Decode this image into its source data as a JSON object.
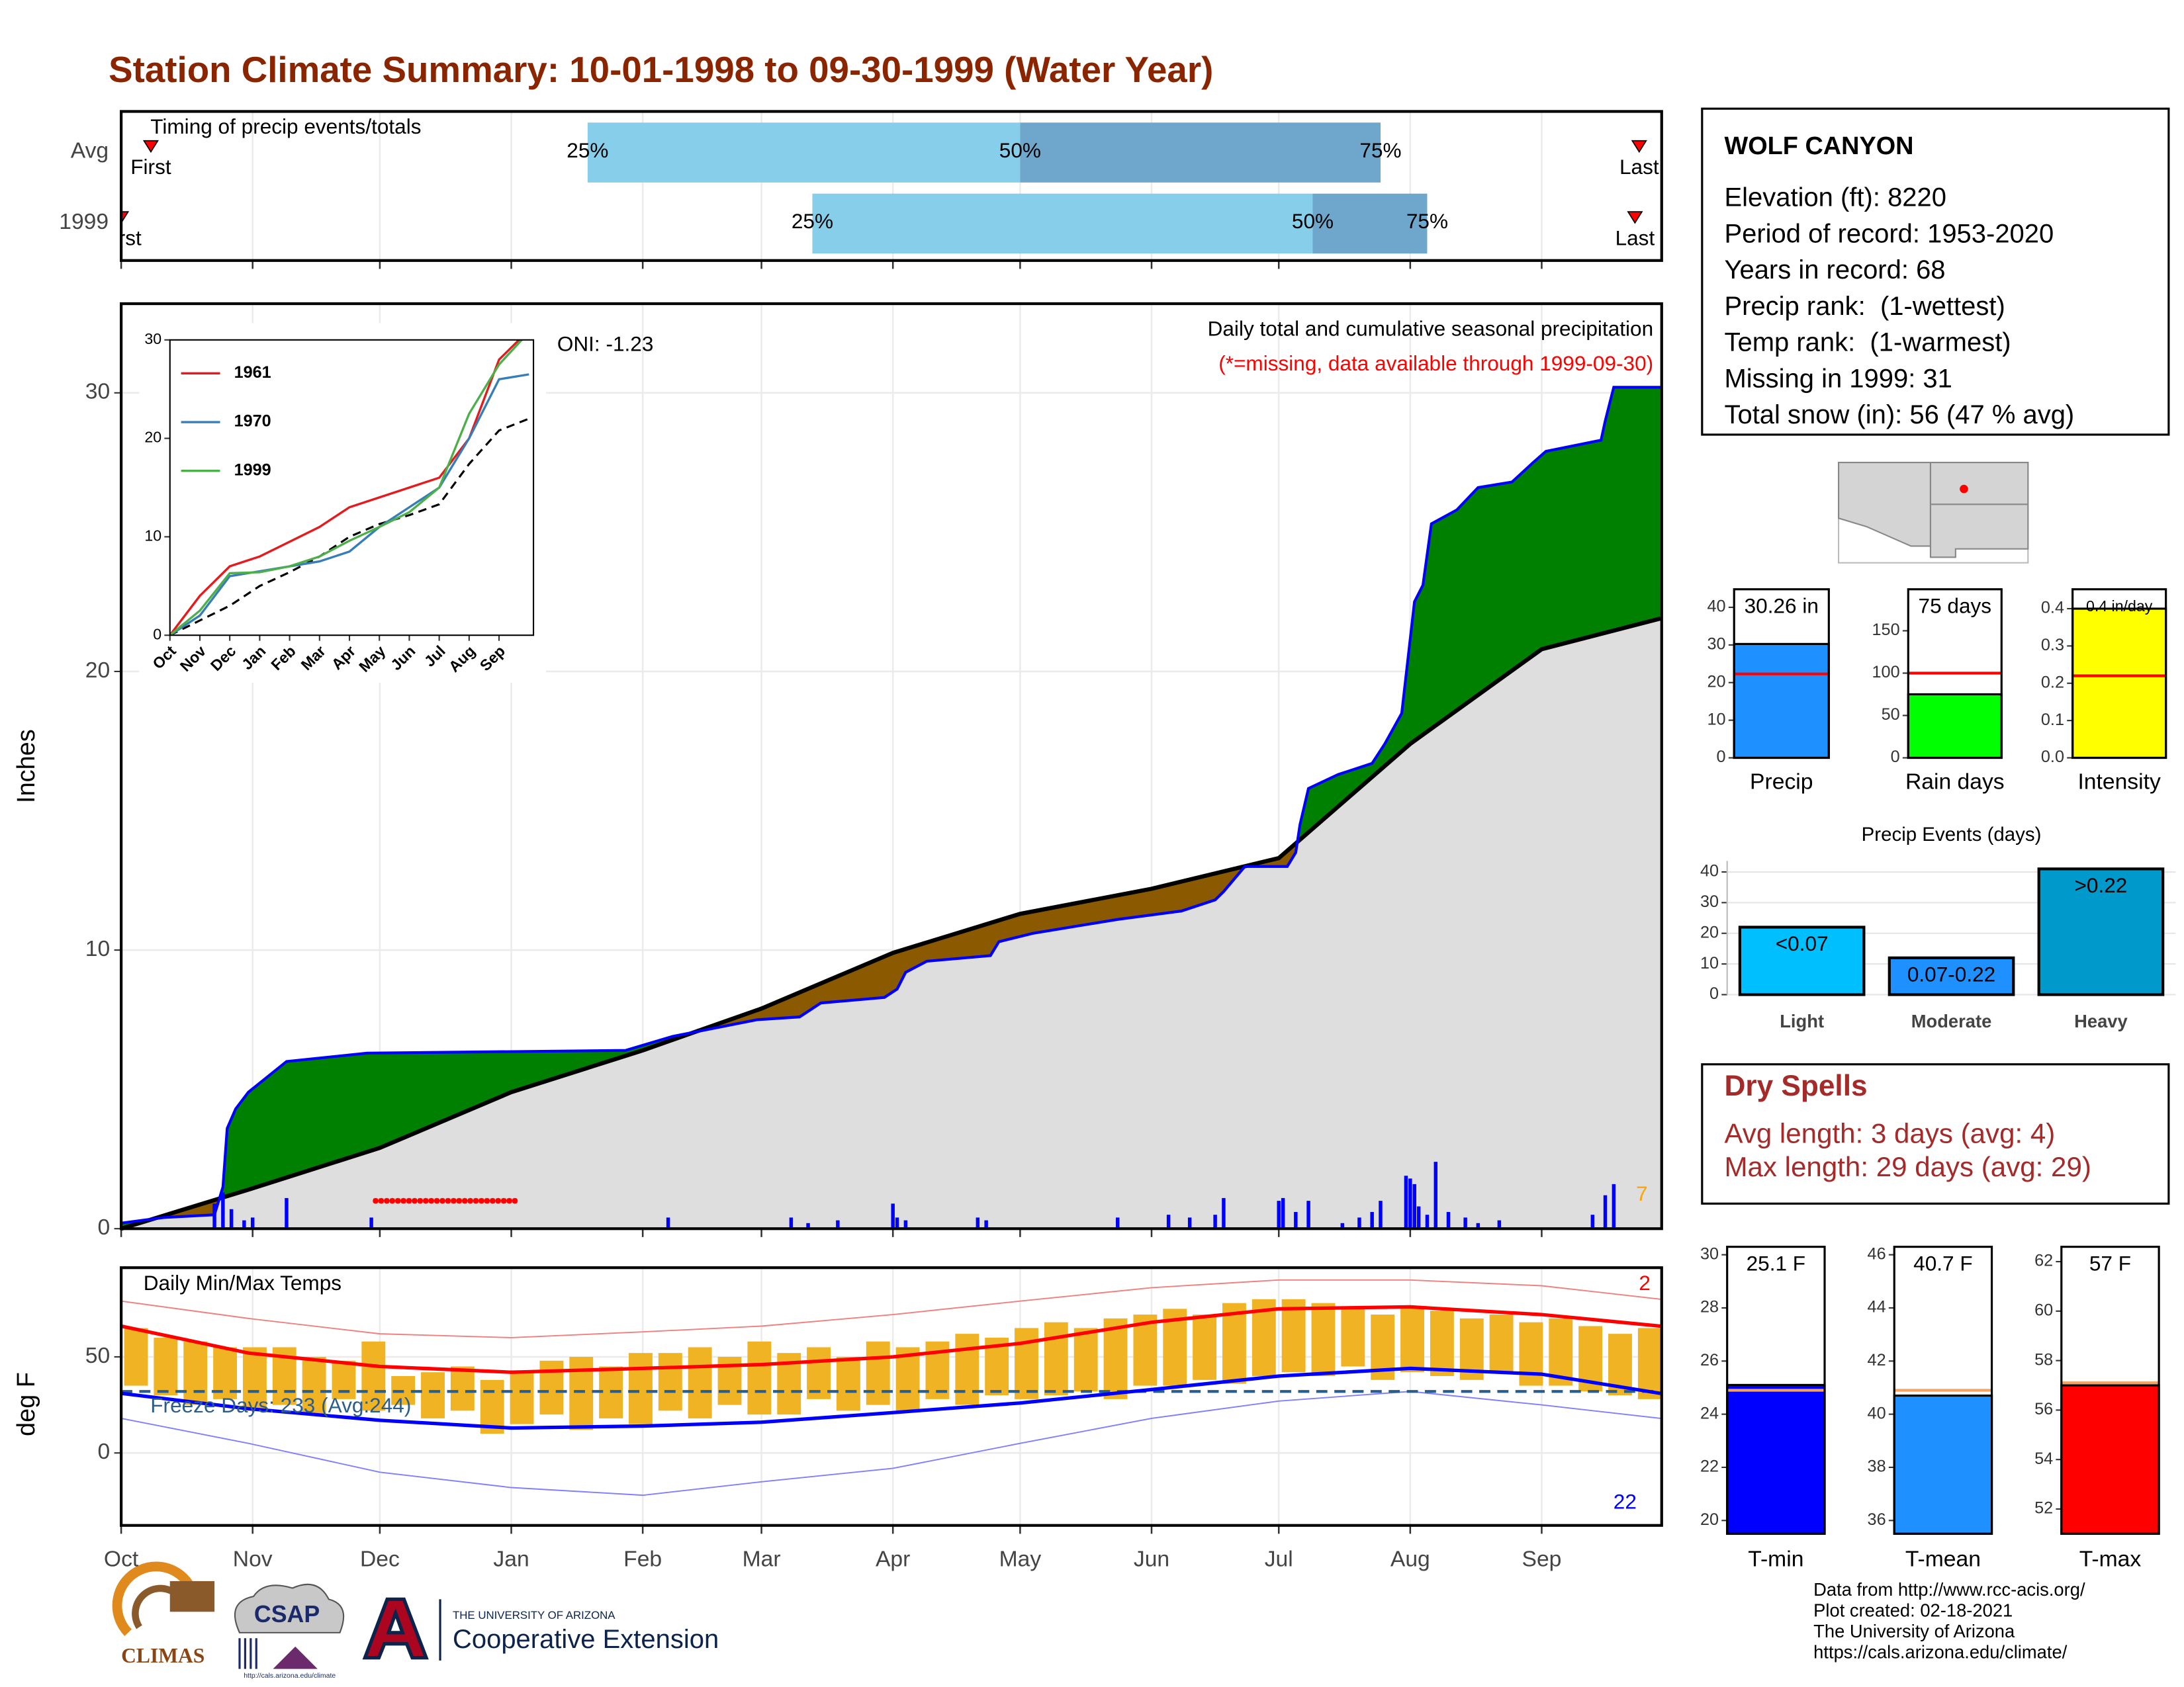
{
  "title": "Station Climate Summary: 10-01-1998 to 09-30-1999 (Water Year)",
  "chart_data": [
    {
      "type": "timing",
      "title": "Timing of precip events/totals",
      "categories": [
        "Avg",
        "1999"
      ],
      "rows": [
        {
          "first": 7,
          "q25": 110,
          "q50": 212,
          "q75": 297,
          "last": 358
        },
        {
          "first": 0,
          "q25": 163,
          "q50": 281,
          "q75": 308,
          "last": 357
        }
      ],
      "labels": {
        "first": "First",
        "q25": "25%",
        "q50": "50%",
        "q75": "75%",
        "last": "Last"
      },
      "colors": {
        "early": "#87ceeb",
        "late": "#6ea6cc",
        "marker": "#ff0000"
      },
      "xlim": [
        0,
        363.3
      ]
    },
    {
      "type": "cumulative",
      "title": "Daily total and cumulative seasonal precipitation",
      "subtitle": "(*=missing, data available through 1999-09-30)",
      "annotation": "ONI: -1.23",
      "count": 7,
      "count_color": "#ffa500",
      "y_label": "Inches",
      "xlim": [
        0,
        363.3
      ],
      "ylim": [
        0,
        33.2
      ],
      "yticks": [
        0,
        10,
        20,
        30
      ],
      "grid": true,
      "cumulative": {
        "color": "#0000ff",
        "x": [
          0,
          10,
          22,
          24,
          25,
          27,
          30,
          39,
          58,
          119,
          130,
          150,
          160,
          165,
          180,
          183,
          185,
          190,
          205,
          207,
          215,
          235,
          250,
          258,
          260,
          265,
          275,
          277,
          278,
          280,
          287,
          295,
          298,
          302,
          305,
          307,
          309,
          315,
          320,
          328,
          333,
          336,
          349,
          350,
          352,
          363
        ],
        "values": [
          0.2,
          0.4,
          0.5,
          1.5,
          3.6,
          4.3,
          4.9,
          6.0,
          6.3,
          6.4,
          6.9,
          7.5,
          7.6,
          8.1,
          8.3,
          8.6,
          9.2,
          9.6,
          9.8,
          10.3,
          10.6,
          11.1,
          11.4,
          11.8,
          12.1,
          13.0,
          13.0,
          13.5,
          14.5,
          15.8,
          16.3,
          16.7,
          17.4,
          18.5,
          22.5,
          23.1,
          25.3,
          25.8,
          26.6,
          26.8,
          27.5,
          27.9,
          28.3,
          29.0,
          30.2,
          30.2
        ]
      },
      "average": {
        "color": "#000000",
        "x": [
          0,
          30,
          61,
          92,
          123,
          151,
          182,
          212,
          243,
          273,
          304,
          335,
          363
        ],
        "values": [
          0,
          1.4,
          2.9,
          4.9,
          6.4,
          7.9,
          9.9,
          11.3,
          12.2,
          13.3,
          17.4,
          20.8,
          21.9
        ]
      },
      "daily": {
        "color": "#0000ff",
        "x": [
          22,
          24,
          26,
          29,
          31,
          39,
          59,
          129,
          158,
          162,
          169,
          182,
          183,
          185,
          202,
          204,
          235,
          247,
          252,
          258,
          260,
          273,
          274,
          277,
          280,
          288,
          292,
          295,
          297,
          303,
          304,
          305,
          306,
          308,
          310,
          313,
          317,
          320,
          325,
          347,
          350,
          352
        ],
        "values": [
          0.9,
          1.3,
          0.7,
          0.3,
          0.4,
          1.1,
          0.4,
          0.4,
          0.4,
          0.2,
          0.3,
          0.9,
          0.4,
          0.3,
          0.4,
          0.3,
          0.4,
          0.5,
          0.4,
          0.5,
          1.1,
          1.0,
          1.1,
          0.6,
          1.0,
          0.2,
          0.4,
          0.6,
          1.0,
          1.9,
          1.8,
          1.6,
          0.8,
          0.5,
          2.4,
          0.6,
          0.4,
          0.2,
          0.3,
          0.5,
          1.2,
          1.6
        ]
      },
      "missing": {
        "x": [
          60,
          93
        ],
        "value": 1.0,
        "color": "#ff0000"
      },
      "above_color": "#008000",
      "below_color": "#8b5a00",
      "area_color": "#dedede"
    },
    {
      "type": "line",
      "xlim": [
        0,
        12.15
      ],
      "ylim": [
        0,
        30
      ],
      "yticks": [
        0,
        10,
        20,
        30
      ],
      "xticks": [
        {
          "value": 0,
          "label": "Oct"
        },
        {
          "value": 1,
          "label": "Nov"
        },
        {
          "value": 2,
          "label": "Dec"
        },
        {
          "value": 3,
          "label": "Jan"
        },
        {
          "value": 4,
          "label": "Feb"
        },
        {
          "value": 5,
          "label": "Mar"
        },
        {
          "value": 6,
          "label": "Apr"
        },
        {
          "value": 7,
          "label": "May"
        },
        {
          "value": 8,
          "label": "Jun"
        },
        {
          "value": 9,
          "label": "Jul"
        },
        {
          "value": 10,
          "label": "Aug"
        },
        {
          "value": 11,
          "label": "Sep"
        }
      ],
      "x": [
        0,
        1,
        2,
        3,
        4,
        5,
        6,
        7,
        8,
        9,
        10,
        11,
        12
      ],
      "series": [
        {
          "name": "1961",
          "color": "#e41a1c",
          "values": [
            0,
            4,
            7,
            8,
            9.5,
            11,
            13,
            14,
            15,
            16,
            20,
            28,
            31
          ]
        },
        {
          "name": "1970",
          "color": "#377eb8",
          "values": [
            0,
            2,
            6,
            6.5,
            7,
            7.5,
            8.5,
            11,
            13,
            15,
            20,
            26,
            26.5
          ]
        },
        {
          "name": "1999",
          "color": "#4daf4a",
          "values": [
            0,
            2.5,
            6.3,
            6.4,
            7,
            8,
            9.6,
            11,
            12.5,
            15,
            22.5,
            27.5,
            30.8
          ]
        }
      ],
      "average": {
        "color": "#000000",
        "values": [
          0,
          1.5,
          3,
          5,
          6.4,
          8,
          10,
          11.3,
          12.2,
          13.3,
          17.4,
          20.8,
          22
        ]
      }
    },
    {
      "type": "temperature",
      "title": "Daily Min/Max Temps",
      "annotation": "Freeze Days: 233 (Avg:244)",
      "record_highs": 2,
      "record_lows": 22,
      "y_label": "deg F",
      "xlim": [
        0,
        363.3
      ],
      "xticks": [
        {
          "value": 0,
          "label": "Oct"
        },
        {
          "value": 31,
          "label": "Nov"
        },
        {
          "value": 61,
          "label": "Dec"
        },
        {
          "value": 92,
          "label": "Jan"
        },
        {
          "value": 123,
          "label": "Feb"
        },
        {
          "value": 151,
          "label": "Mar"
        },
        {
          "value": 182,
          "label": "Apr"
        },
        {
          "value": 212,
          "label": "May"
        },
        {
          "value": 243,
          "label": "Jun"
        },
        {
          "value": 273,
          "label": "Jul"
        },
        {
          "value": 304,
          "label": "Aug"
        },
        {
          "value": 335,
          "label": "Sep"
        }
      ],
      "ylim": [
        -37.7,
        96.4
      ],
      "yticks": [
        0,
        50
      ],
      "grid": true,
      "daily": {
        "color": "#f0b323",
        "x": [
          0,
          7,
          14,
          21,
          28,
          35,
          42,
          49,
          56,
          63,
          70,
          77,
          84,
          91,
          98,
          105,
          112,
          119,
          126,
          133,
          140,
          147,
          154,
          161,
          168,
          175,
          182,
          189,
          196,
          203,
          210,
          217,
          224,
          231,
          238,
          245,
          252,
          259,
          266,
          273,
          280,
          287,
          294,
          301,
          308,
          315,
          322,
          329,
          336,
          343,
          350,
          357
        ],
        "high": [
          65,
          60,
          58,
          55,
          55,
          55,
          50,
          48,
          58,
          40,
          42,
          45,
          38,
          43,
          48,
          50,
          45,
          52,
          52,
          55,
          50,
          58,
          52,
          55,
          50,
          58,
          55,
          58,
          62,
          60,
          65,
          68,
          65,
          70,
          72,
          75,
          72,
          78,
          80,
          80,
          78,
          75,
          72,
          76,
          74,
          70,
          72,
          68,
          70,
          66,
          62,
          65
        ],
        "low": [
          35,
          30,
          25,
          28,
          22,
          25,
          20,
          28,
          22,
          25,
          18,
          22,
          10,
          15,
          20,
          12,
          18,
          15,
          22,
          18,
          25,
          20,
          20,
          28,
          22,
          25,
          22,
          28,
          25,
          30,
          28,
          30,
          32,
          28,
          35,
          35,
          38,
          36,
          40,
          42,
          40,
          45,
          38,
          42,
          40,
          38,
          42,
          35,
          35,
          32,
          30,
          28
        ]
      },
      "normals": {
        "x": [
          0,
          30,
          61,
          92,
          123,
          151,
          182,
          212,
          243,
          273,
          304,
          335,
          363
        ],
        "avg_max": [
          66,
          52,
          45,
          42,
          44,
          46,
          50,
          57,
          68,
          75,
          76,
          72,
          66
        ],
        "avg_min": [
          31,
          23,
          17,
          13,
          14,
          16,
          21,
          26,
          33,
          40,
          44,
          41,
          31
        ],
        "record_max": [
          79,
          70,
          62,
          60,
          63,
          66,
          72,
          79,
          86,
          90,
          90,
          87,
          80
        ],
        "record_min": [
          18,
          5,
          -10,
          -18,
          -22,
          -15,
          -8,
          5,
          18,
          27,
          32,
          25,
          18
        ]
      },
      "colors": {
        "avg_max": "#ff0000",
        "avg_min": "#0000ff",
        "record_max": "#f08080",
        "record_min": "#7f7fff"
      },
      "freeze": 32,
      "freeze_color": "#2b5d8a"
    },
    {
      "type": "gauge",
      "label": "Precip",
      "value": 30.26,
      "value_label": "30.26 in",
      "average": 22.3,
      "ylim": [
        0,
        44.8
      ],
      "yticks": [
        0,
        10,
        20,
        30,
        40
      ],
      "color": "#1e90ff",
      "average_color": "#ff0000"
    },
    {
      "type": "gauge",
      "label": "Rain days",
      "value": 75,
      "value_label": "75 days",
      "average": 100,
      "ylim": [
        0,
        199
      ],
      "yticks": [
        0,
        50,
        100,
        150
      ],
      "color": "#00ff00",
      "average_color": "#ff0000"
    },
    {
      "type": "gauge",
      "label": "Intensity",
      "value": 0.4,
      "value_label": "0.4 in/day",
      "average": 0.22,
      "ylim": [
        0,
        0.452
      ],
      "yticks": [
        {
          "value": 0,
          "label": "0.0"
        },
        0.1,
        0.2,
        0.3,
        0.4
      ],
      "color": "#ffff00",
      "average_color": "#ff0000"
    },
    {
      "type": "bar",
      "title": "Precip Events (days)",
      "categories": [
        "Light",
        "Moderate",
        "Heavy"
      ],
      "values": [
        22,
        12,
        41
      ],
      "bar_labels": [
        "<0.07",
        "0.07-0.22",
        ">0.22"
      ],
      "colors": [
        "#00bfff",
        "#1e90ff",
        "#0099cc"
      ],
      "ylim": [
        0,
        43.6
      ],
      "yticks": [
        0,
        10,
        20,
        30,
        40
      ],
      "grid": true
    },
    {
      "type": "gauge",
      "label": "T-min",
      "value": 25.1,
      "value_label": "25.1 F",
      "average": 24.9,
      "ylim": [
        19.5,
        30.3
      ],
      "yticks": [
        20,
        22,
        24,
        26,
        28,
        30
      ],
      "color": "#0000ff",
      "average_color": "#f4a460"
    },
    {
      "type": "gauge",
      "label": "T-mean",
      "value": 40.7,
      "value_label": "40.7 F",
      "average": 40.9,
      "ylim": [
        35.5,
        46.3
      ],
      "yticks": [
        36,
        38,
        40,
        42,
        44,
        46
      ],
      "color": "#1e90ff",
      "average_color": "#f4a460"
    },
    {
      "type": "gauge",
      "label": "T-max",
      "value": 57,
      "value_label": "57 F",
      "average": 57.1,
      "ylim": [
        51,
        62.6
      ],
      "yticks": [
        52,
        54,
        56,
        58,
        60,
        62
      ],
      "color": "#ff0000",
      "average_color": "#f4a460"
    }
  ],
  "info": {
    "title": "WOLF CANYON",
    "lines": [
      "Elevation (ft): 8220",
      "Period of record: 1953-2020",
      "Years in record: 68",
      "Precip rank:  (1-wettest)",
      "Temp rank:  (1-warmest)",
      "Missing in 1999: 31",
      "Total snow (in): 56 (47 % avg)"
    ]
  },
  "dry_spells": {
    "title": "Dry Spells",
    "lines": [
      "Avg length: 3 days (avg: 4)",
      "Max length: 29 days (avg: 29)"
    ]
  },
  "footer": {
    "logos": [
      "CLIMAS",
      "CSAP",
      "http://cals.arizona.edu/climate",
      "THE UNIVERSITY OF ARIZONA",
      "Cooperative Extension"
    ],
    "credits": [
      "Data from http://www.rcc-acis.org/",
      "Plot created: 02-18-2021",
      "The University of Arizona",
      "https://cals.arizona.edu/climate/"
    ]
  }
}
